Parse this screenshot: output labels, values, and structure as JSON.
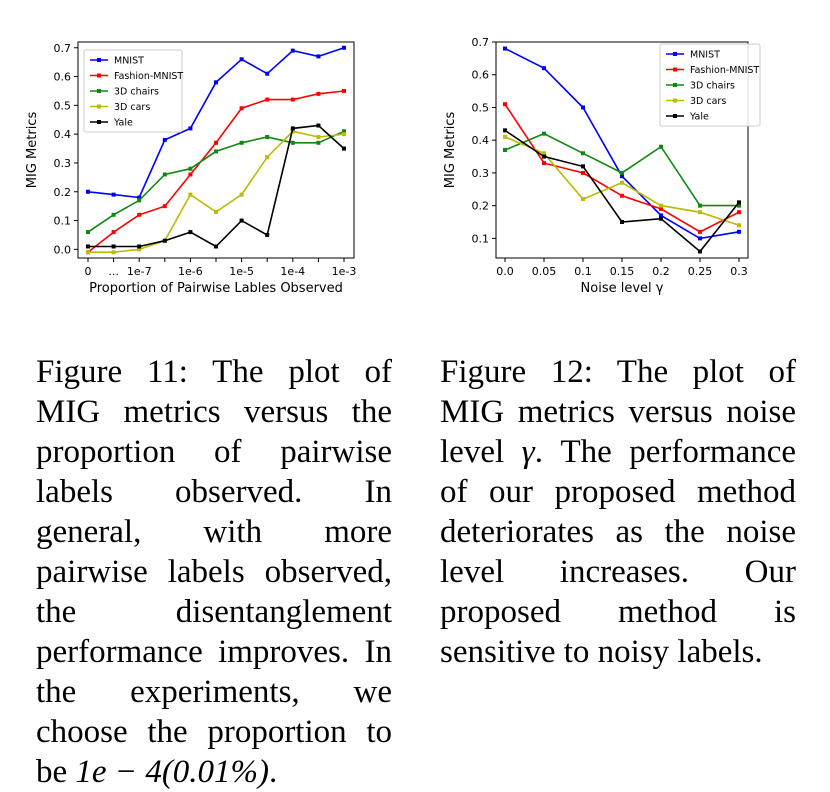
{
  "chart_data": [
    {
      "id": "fig11",
      "type": "line",
      "title": "",
      "xlabel": "Proportion of Pairwise Lables Observed",
      "ylabel": "MIG Metrics",
      "categories": [
        "0",
        "...",
        "1e-7",
        "",
        "1e-6",
        "",
        "1e-5",
        "",
        "1e-4",
        "",
        "1e-3"
      ],
      "tick_labels": [
        "0",
        "...",
        "1e-7",
        "1e-6",
        "1e-5",
        "1e-4",
        "1e-3"
      ],
      "ylim": [
        -0.03,
        0.72
      ],
      "yticks": [
        0.0,
        0.1,
        0.2,
        0.3,
        0.4,
        0.5,
        0.6,
        0.7
      ],
      "legend_position": "top-left",
      "series": [
        {
          "name": "MNIST",
          "color": "#0000ff",
          "values": [
            0.2,
            0.19,
            0.18,
            0.38,
            0.42,
            0.58,
            0.66,
            0.61,
            0.69,
            0.67,
            0.7
          ]
        },
        {
          "name": "Fashion-MNIST",
          "color": "#ff0000",
          "values": [
            -0.01,
            0.06,
            0.12,
            0.15,
            0.26,
            0.37,
            0.49,
            0.52,
            0.52,
            0.54,
            0.55
          ]
        },
        {
          "name": "3D chairs",
          "color": "#118811",
          "values": [
            0.06,
            0.12,
            0.17,
            0.26,
            0.28,
            0.34,
            0.37,
            0.39,
            0.37,
            0.37,
            0.41
          ]
        },
        {
          "name": "3D cars",
          "color": "#bbbb00",
          "values": [
            -0.01,
            -0.01,
            0.0,
            0.03,
            0.19,
            0.13,
            0.19,
            0.32,
            0.41,
            0.39,
            0.4
          ]
        },
        {
          "name": "Yale",
          "color": "#000000",
          "values": [
            0.01,
            0.01,
            0.01,
            0.03,
            0.06,
            0.01,
            0.1,
            0.05,
            0.42,
            0.43,
            0.35
          ]
        }
      ]
    },
    {
      "id": "fig12",
      "type": "line",
      "title": "",
      "xlabel": "Noise level γ",
      "ylabel": "MIG Metrics",
      "categories": [
        "0.0",
        "0.05",
        "0.1",
        "0.15",
        "0.2",
        "0.25",
        "0.3"
      ],
      "tick_labels": [
        "0.0",
        "0.05",
        "0.1",
        "0.15",
        "0.2",
        "0.25",
        "0.3"
      ],
      "ylim": [
        0.04,
        0.7
      ],
      "yticks": [
        0.1,
        0.2,
        0.3,
        0.4,
        0.5,
        0.6,
        0.7
      ],
      "legend_position": "top-right",
      "series": [
        {
          "name": "MNIST",
          "color": "#0000ff",
          "values": [
            0.68,
            0.62,
            0.5,
            0.29,
            0.17,
            0.1,
            0.12
          ]
        },
        {
          "name": "Fashion-MNIST",
          "color": "#ff0000",
          "values": [
            0.51,
            0.33,
            0.3,
            0.23,
            0.19,
            0.12,
            0.18
          ]
        },
        {
          "name": "3D chairs",
          "color": "#118811",
          "values": [
            0.37,
            0.42,
            0.36,
            0.3,
            0.38,
            0.2,
            0.2
          ]
        },
        {
          "name": "3D cars",
          "color": "#bbbb00",
          "values": [
            0.41,
            0.36,
            0.22,
            0.27,
            0.2,
            0.18,
            0.14
          ]
        },
        {
          "name": "Yale",
          "color": "#000000",
          "values": [
            0.43,
            0.35,
            0.32,
            0.15,
            0.16,
            0.06,
            0.21
          ]
        }
      ]
    }
  ],
  "captions": {
    "fig11": {
      "text": "Figure 11: The plot of MIG metrics versus the proportion of pairwise labels observed. In general, with more pairwise labels observed, the disentanglement performance improves. In the experiments, we choose the proportion to be",
      "math": "1e − 4(0.01%)",
      "end": "."
    },
    "fig12": {
      "text_before": "Figure 12: The plot of MIG metrics versus noise level",
      "math": "γ",
      "text_after": ". The performance of our proposed method deteriorates as the noise level increases. Our proposed method is sensitive to noisy labels."
    }
  }
}
